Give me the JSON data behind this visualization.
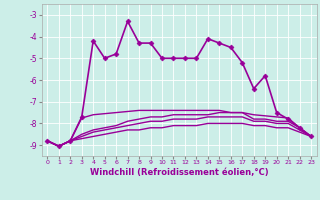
{
  "xlabel": "Windchill (Refroidissement éolien,°C)",
  "background_color": "#cceee8",
  "line_color": "#990099",
  "xlim": [
    -0.5,
    23.5
  ],
  "ylim": [
    -9.5,
    -2.5
  ],
  "yticks": [
    -9,
    -8,
    -7,
    -6,
    -5,
    -4,
    -3
  ],
  "xticks": [
    0,
    1,
    2,
    3,
    4,
    5,
    6,
    7,
    8,
    9,
    10,
    11,
    12,
    13,
    14,
    15,
    16,
    17,
    18,
    19,
    20,
    21,
    22,
    23
  ],
  "series": [
    {
      "x": [
        0,
        1,
        2,
        3,
        4,
        5,
        6,
        7,
        8,
        9,
        10,
        11,
        12,
        13,
        14,
        15,
        16,
        17,
        18,
        19,
        20,
        21,
        22,
        23
      ],
      "y": [
        -8.8,
        -9.05,
        -8.8,
        -7.7,
        -4.2,
        -5.0,
        -4.8,
        -3.3,
        -4.3,
        -4.3,
        -5.0,
        -5.0,
        -5.0,
        -5.0,
        -4.1,
        -4.3,
        -4.5,
        -5.2,
        -6.4,
        -5.8,
        -7.5,
        -7.8,
        -8.2,
        -8.6
      ],
      "marker": "D",
      "markersize": 2.5,
      "linewidth": 1.2
    },
    {
      "x": [
        0,
        1,
        2,
        3,
        4,
        5,
        6,
        7,
        8,
        9,
        10,
        11,
        12,
        13,
        14,
        15,
        16,
        17,
        18,
        19,
        20,
        21,
        22,
        23
      ],
      "y": [
        -8.8,
        -9.05,
        -8.8,
        -7.75,
        -7.6,
        -7.55,
        -7.5,
        -7.45,
        -7.4,
        -7.4,
        -7.4,
        -7.4,
        -7.4,
        -7.4,
        -7.4,
        -7.4,
        -7.5,
        -7.5,
        -7.6,
        -7.65,
        -7.7,
        -7.75,
        -8.2,
        -8.6
      ],
      "marker": null,
      "markersize": 0,
      "linewidth": 1.0
    },
    {
      "x": [
        0,
        1,
        2,
        3,
        4,
        5,
        6,
        7,
        8,
        9,
        10,
        11,
        12,
        13,
        14,
        15,
        16,
        17,
        18,
        19,
        20,
        21,
        22,
        23
      ],
      "y": [
        -8.8,
        -9.05,
        -8.8,
        -8.5,
        -8.3,
        -8.2,
        -8.1,
        -7.9,
        -7.8,
        -7.7,
        -7.7,
        -7.6,
        -7.6,
        -7.6,
        -7.6,
        -7.5,
        -7.5,
        -7.5,
        -7.8,
        -7.8,
        -7.9,
        -7.9,
        -8.2,
        -8.6
      ],
      "marker": null,
      "markersize": 0,
      "linewidth": 1.0
    },
    {
      "x": [
        0,
        1,
        2,
        3,
        4,
        5,
        6,
        7,
        8,
        9,
        10,
        11,
        12,
        13,
        14,
        15,
        16,
        17,
        18,
        19,
        20,
        21,
        22,
        23
      ],
      "y": [
        -8.8,
        -9.05,
        -8.8,
        -8.6,
        -8.4,
        -8.3,
        -8.2,
        -8.1,
        -8.0,
        -7.9,
        -7.9,
        -7.8,
        -7.8,
        -7.8,
        -7.7,
        -7.7,
        -7.7,
        -7.7,
        -7.9,
        -7.9,
        -8.0,
        -8.0,
        -8.3,
        -8.6
      ],
      "marker": null,
      "markersize": 0,
      "linewidth": 1.0
    },
    {
      "x": [
        0,
        1,
        2,
        3,
        4,
        5,
        6,
        7,
        8,
        9,
        10,
        11,
        12,
        13,
        14,
        15,
        16,
        17,
        18,
        19,
        20,
        21,
        22,
        23
      ],
      "y": [
        -8.8,
        -9.05,
        -8.8,
        -8.7,
        -8.6,
        -8.5,
        -8.4,
        -8.3,
        -8.3,
        -8.2,
        -8.2,
        -8.1,
        -8.1,
        -8.1,
        -8.0,
        -8.0,
        -8.0,
        -8.0,
        -8.1,
        -8.1,
        -8.2,
        -8.2,
        -8.4,
        -8.6
      ],
      "marker": null,
      "markersize": 0,
      "linewidth": 1.0
    }
  ]
}
